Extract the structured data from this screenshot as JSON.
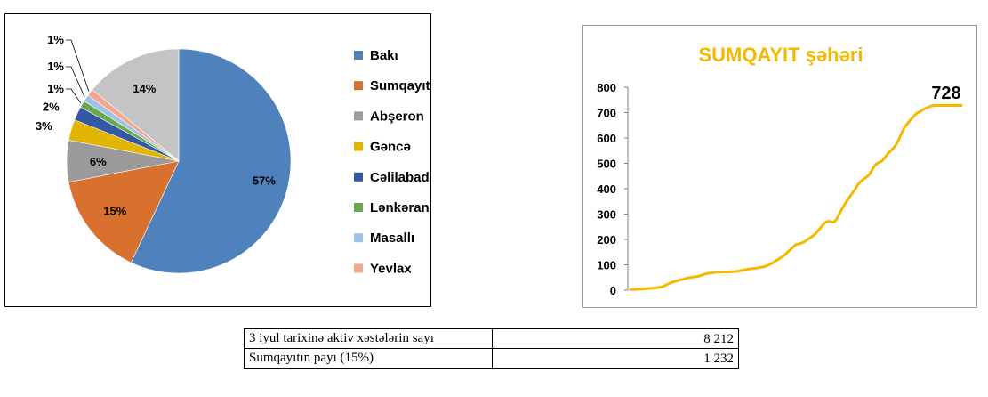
{
  "chart_data": [
    {
      "type": "pie",
      "categories": [
        "Bakı",
        "Sumqayıt",
        "Abşeron",
        "Gəncə",
        "Cəlilabad",
        "Lənkəran",
        "Masallı",
        "Yevlax",
        ""
      ],
      "values": [
        57,
        15,
        6,
        3,
        2,
        1,
        1,
        1,
        14
      ],
      "labels": [
        "57%",
        "15%",
        "6%",
        "3%",
        "2%",
        "1%",
        "1%",
        "1%",
        "14%"
      ],
      "colors": [
        "#4f81bd",
        "#d8712e",
        "#9b9b9b",
        "#e2b500",
        "#3458a4",
        "#6aa84f",
        "#9dc3e6",
        "#f4a68e",
        "#c4c4c4"
      ],
      "legend": [
        "Bakı",
        "Sumqayıt",
        "Abşeron",
        "Gəncə",
        "Cəlilabad",
        "Lənkəran",
        "Masallı",
        "Yevlax"
      ],
      "legend_position": "right"
    },
    {
      "type": "line",
      "title": "SUMQAYIT şəhəri",
      "title_color": "#f5b800",
      "line_color": "#f5b800",
      "yticks": [
        0,
        100,
        200,
        300,
        400,
        500,
        600,
        700,
        800
      ],
      "ylim": [
        0,
        800
      ],
      "end_label": "728",
      "grid": false,
      "x": [
        0,
        1,
        2,
        3,
        4,
        5,
        6,
        7,
        8,
        9,
        10,
        11,
        12,
        13,
        14,
        15,
        16,
        17,
        18,
        19,
        20,
        21,
        22,
        23,
        24,
        25,
        26,
        27,
        28,
        29,
        30,
        31,
        32,
        33,
        34,
        35,
        36,
        37,
        38,
        39,
        40,
        41,
        42,
        43,
        44,
        45,
        46,
        47,
        48,
        49,
        50,
        51,
        52,
        53,
        54,
        55,
        56,
        57,
        58,
        59,
        60,
        61,
        62,
        63,
        64,
        65,
        66,
        67,
        68,
        69,
        70,
        71,
        72,
        73,
        74,
        75,
        76,
        77,
        78,
        79,
        80,
        81,
        82,
        83,
        84,
        85,
        86,
        87,
        88,
        89,
        90,
        91,
        92,
        93,
        94,
        95,
        96,
        97,
        98,
        99,
        100,
        101,
        102,
        103,
        104,
        105,
        106,
        107,
        108,
        109,
        110,
        111,
        112,
        113,
        114,
        115,
        116,
        117,
        118,
        119,
        120,
        121,
        122
      ],
      "values": [
        2,
        3,
        3,
        4,
        4,
        5,
        6,
        7,
        8,
        9,
        10,
        12,
        14,
        20,
        25,
        30,
        33,
        36,
        40,
        42,
        45,
        48,
        50,
        52,
        53,
        55,
        58,
        62,
        65,
        67,
        68,
        70,
        71,
        71,
        72,
        72,
        72,
        73,
        73,
        74,
        75,
        78,
        80,
        82,
        84,
        85,
        86,
        88,
        90,
        92,
        95,
        100,
        105,
        112,
        118,
        125,
        132,
        140,
        150,
        160,
        170,
        180,
        182,
        185,
        190,
        198,
        205,
        212,
        220,
        232,
        245,
        258,
        268,
        272,
        270,
        268,
        280,
        300,
        320,
        338,
        355,
        370,
        385,
        400,
        418,
        430,
        438,
        445,
        455,
        472,
        490,
        500,
        505,
        512,
        525,
        540,
        550,
        560,
        575,
        595,
        620,
        640,
        655,
        668,
        680,
        692,
        700,
        705,
        712,
        718,
        722,
        726,
        728,
        728,
        728,
        728,
        728,
        728,
        728,
        728,
        728,
        728,
        728
      ]
    }
  ],
  "table": {
    "rows": [
      {
        "label": "3  iyul  tarixinə  aktiv  xəstələrin  sayı",
        "value": "8 212"
      },
      {
        "label": "Sumqayıtın payı (15%)",
        "value": "1 232"
      }
    ]
  }
}
